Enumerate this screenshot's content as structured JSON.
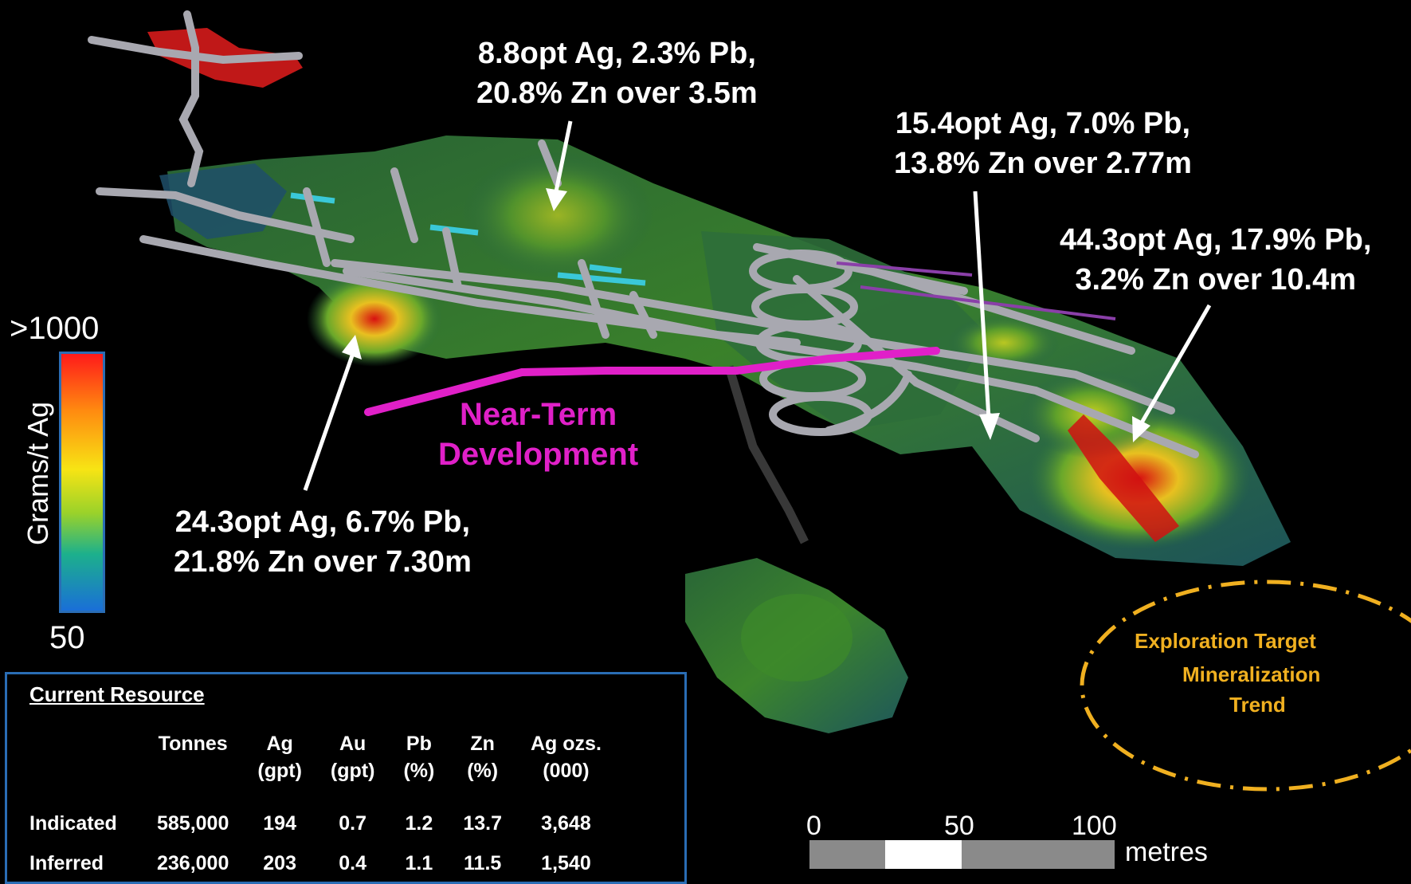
{
  "annotations": {
    "top": "8.8opt Ag, 2.3% Pb,\n20.8% Zn over 3.5m",
    "mid_right": "15.4opt Ag, 7.0% Pb,\n13.8% Zn over 2.77m",
    "far_right": "44.3opt Ag, 17.9% Pb,\n3.2% Zn over 10.4m",
    "left": "24.3opt Ag, 6.7% Pb,\n21.8% Zn over 7.30m"
  },
  "near_term": "Near-Term\nDevelopment",
  "exploration": {
    "line1": "Exploration Target",
    "line2": "Mineralization",
    "line3": "Trend"
  },
  "color_scale": {
    "max": ">1000",
    "min": "50",
    "title": "Grams/t Ag"
  },
  "resource": {
    "title": "Current Resource",
    "headers": [
      {
        "l1": "",
        "l2": ""
      },
      {
        "l1": "Tonnes",
        "l2": ""
      },
      {
        "l1": "Ag",
        "l2": "(gpt)"
      },
      {
        "l1": "Au",
        "l2": "(gpt)"
      },
      {
        "l1": "Pb",
        "l2": "(%)"
      },
      {
        "l1": "Zn",
        "l2": "(%)"
      },
      {
        "l1": "Ag  ozs.",
        "l2": "(000)"
      }
    ],
    "rows": [
      [
        "Indicated",
        "585,000",
        "194",
        "0.7",
        "1.2",
        "13.7",
        "3,648"
      ],
      [
        "Inferred",
        "236,000",
        "203",
        "0.4",
        "1.1",
        "11.5",
        "1,540"
      ]
    ]
  },
  "scale_bar": {
    "ticks": [
      "0",
      "50",
      "100"
    ],
    "unit": "metres"
  },
  "colors": {
    "pink_line": "#e020c8",
    "explore": "#f0b020",
    "frame": "#2a6db5",
    "workings": "#a8a8b0"
  }
}
